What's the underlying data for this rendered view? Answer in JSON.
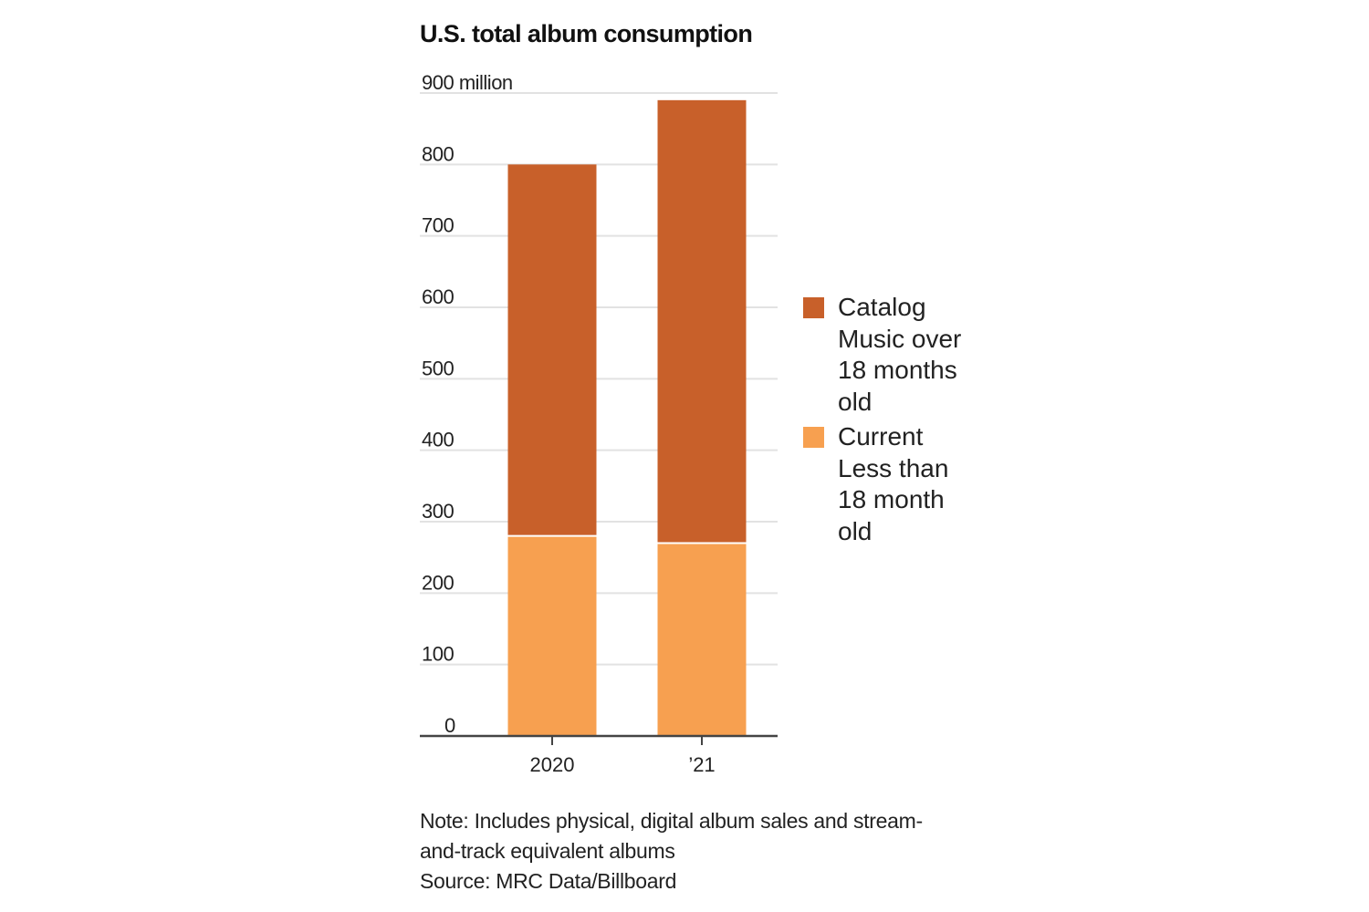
{
  "chart_data": {
    "type": "bar",
    "stacked": true,
    "title": "U.S. total album consumption",
    "unit_label": "900 million",
    "categories": [
      "2020",
      "’21"
    ],
    "series": [
      {
        "name": "Current Less than 18 month old",
        "values": [
          280,
          270
        ],
        "color": "#f7a050"
      },
      {
        "name": "Catalog Music over 18 months old",
        "values": [
          520,
          620
        ],
        "color": "#c8602a"
      }
    ],
    "ylim": [
      0,
      900
    ],
    "yticks": [
      0,
      100,
      200,
      300,
      400,
      500,
      600,
      700,
      800,
      900
    ],
    "ytick_labels": [
      "0",
      "100",
      "200",
      "300",
      "400",
      "500",
      "600",
      "700",
      "800",
      "900 million"
    ],
    "grid": true,
    "legend_position": "right"
  },
  "legend": {
    "items": [
      {
        "label": "Catalog Music over 18 months old",
        "color": "#c8602a"
      },
      {
        "label": "Current Less than 18 month old",
        "color": "#f7a050"
      }
    ]
  },
  "footer": {
    "note": "Note: Includes physical, digital album sales and stream-and-track equivalent albums",
    "source": "Source: MRC Data/Billboard"
  },
  "colors": {
    "catalog": "#c8602a",
    "current": "#f7a050",
    "grid": "#e2e2e2",
    "axis": "#444444"
  }
}
